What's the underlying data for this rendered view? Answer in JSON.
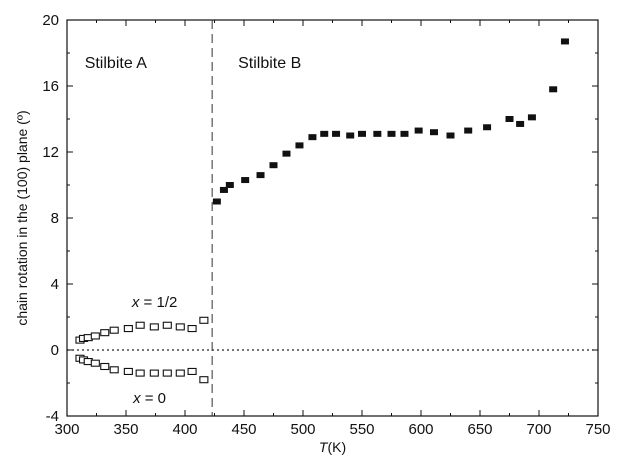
{
  "chart_data": {
    "type": "scatter",
    "xlabel_italic": "T",
    "xlabel_rest": "(K)",
    "ylabel": "chain rotation in the (100) plane (º)",
    "xlim": [
      300,
      750
    ],
    "ylim": [
      -4,
      20
    ],
    "xticks": [
      300,
      350,
      400,
      450,
      500,
      550,
      600,
      650,
      700,
      750
    ],
    "yticks": [
      -4,
      0,
      4,
      8,
      12,
      16,
      20
    ],
    "grid": false,
    "zero_line": "dotted",
    "transition_T": 423,
    "region_labels": [
      {
        "text": "Stilbite A",
        "x": 315,
        "y": 17.1
      },
      {
        "text": "Stilbite B",
        "x": 445,
        "y": 17.1
      }
    ],
    "series": [
      {
        "name": "x = 1/2",
        "label_italic": "x",
        "label_rest": " = 1/2",
        "marker": "open-square",
        "x": [
          311,
          314,
          318,
          324,
          332,
          340,
          352,
          362,
          374,
          385,
          396,
          406,
          416
        ],
        "y": [
          0.6,
          0.7,
          0.75,
          0.85,
          1.05,
          1.2,
          1.3,
          1.5,
          1.4,
          1.5,
          1.4,
          1.3,
          1.8
        ]
      },
      {
        "name": "x = 0",
        "label_italic": "x",
        "label_rest": " = 0",
        "marker": "open-square",
        "x": [
          311,
          314,
          318,
          324,
          332,
          340,
          352,
          362,
          374,
          385,
          396,
          406,
          416
        ],
        "y": [
          -0.5,
          -0.6,
          -0.7,
          -0.8,
          -1.0,
          -1.2,
          -1.3,
          -1.4,
          -1.4,
          -1.4,
          -1.4,
          -1.3,
          -1.8
        ]
      },
      {
        "name": "Stilbite B",
        "marker": "filled-square",
        "x": [
          427,
          433,
          438,
          451,
          464,
          475,
          486,
          497,
          508,
          518,
          528,
          540,
          550,
          563,
          575,
          586,
          598,
          611,
          625,
          640,
          656,
          675,
          684,
          694,
          712,
          722
        ],
        "y": [
          9.0,
          9.7,
          10.0,
          10.3,
          10.6,
          11.2,
          11.9,
          12.4,
          12.9,
          13.1,
          13.1,
          13.0,
          13.1,
          13.1,
          13.1,
          13.1,
          13.3,
          13.2,
          13.0,
          13.3,
          13.5,
          14.0,
          13.7,
          14.1,
          15.8,
          18.7
        ]
      }
    ]
  }
}
